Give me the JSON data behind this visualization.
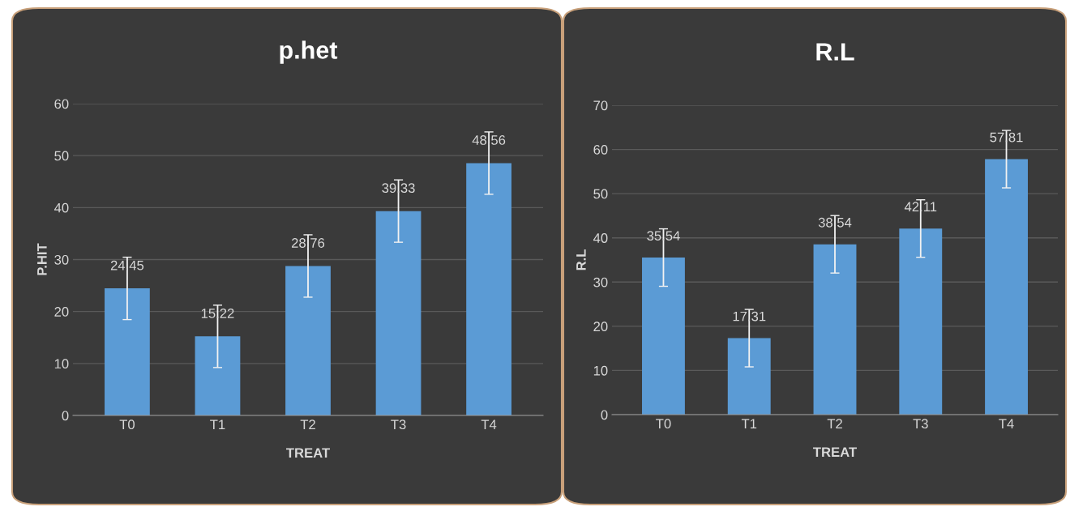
{
  "chart_data": [
    {
      "type": "bar",
      "title": "p.het",
      "xlabel": "TREAT",
      "ylabel": "P.HIT",
      "categories": [
        "T0",
        "T1",
        "T2",
        "T3",
        "T4"
      ],
      "series": [
        {
          "color": "#5b9bd5",
          "values": [
            24.45,
            15.22,
            28.76,
            39.33,
            48.56
          ],
          "errors": [
            6,
            6,
            6,
            6,
            6
          ]
        }
      ],
      "ylim": [
        0,
        60
      ],
      "yticks": [
        0,
        10,
        20,
        30,
        40,
        50,
        60
      ],
      "grid": "y",
      "data_labels": true,
      "legend": false
    },
    {
      "type": "bar",
      "title": "R.L",
      "xlabel": "TREAT",
      "ylabel": "R.L",
      "categories": [
        "T0",
        "T1",
        "T2",
        "T3",
        "T4"
      ],
      "series": [
        {
          "color": "#5b9bd5",
          "values": [
            35.54,
            17.31,
            38.54,
            42.11,
            57.81
          ],
          "errors": [
            6.5,
            6.5,
            6.5,
            6.5,
            6.5
          ]
        }
      ],
      "ylim": [
        0,
        70
      ],
      "yticks": [
        0,
        10,
        20,
        30,
        40,
        50,
        60,
        70
      ],
      "grid": "y",
      "data_labels": true,
      "legend": false
    }
  ]
}
